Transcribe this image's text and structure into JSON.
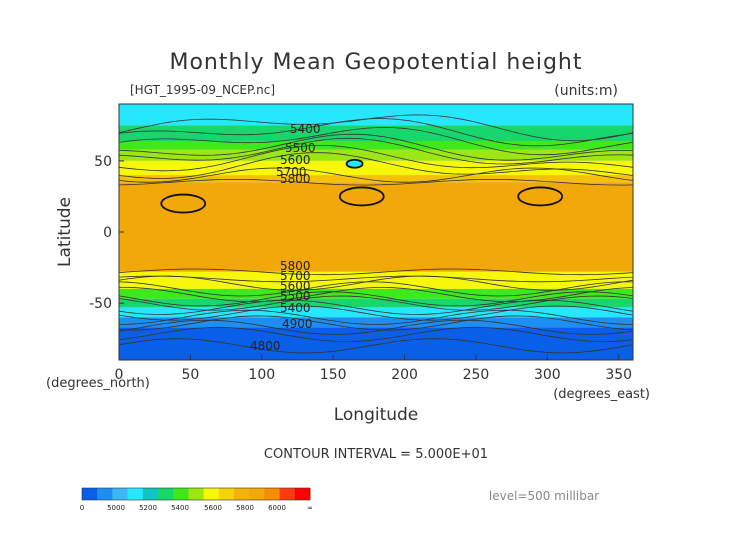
{
  "chart_data": {
    "type": "heatmap",
    "title": "Monthly Mean Geopotential height",
    "file_label": "[HGT_1995-09_NCEP.nc]",
    "units_label": "(units:m)",
    "xlabel": "Longitude",
    "ylabel": "Latitude",
    "x_unit_label": "(degrees_east)",
    "y_unit_label": "(degrees_north)",
    "xlim": [
      0,
      360
    ],
    "ylim": [
      -90,
      90
    ],
    "x_ticks": [
      "0",
      "50",
      "100",
      "150",
      "200",
      "250",
      "300",
      "350"
    ],
    "y_ticks": [
      "50",
      "0",
      "-50"
    ],
    "contour_labels": [
      "5400",
      "5500",
      "5600",
      "5700",
      "5800",
      "5800",
      "5700",
      "5600",
      "5500",
      "5400",
      "4900",
      "4800"
    ],
    "contour_interval_label": "CONTOUR INTERVAL = 5.000E+01",
    "level_label": "level=500 millibar",
    "colorbar": {
      "tick_labels": [
        "0",
        "5000",
        "5200",
        "5400",
        "5600",
        "5800",
        "6000",
        "∞"
      ],
      "colors": [
        "#0a5fe8",
        "#1d8ff2",
        "#3fb6f6",
        "#25e8ff",
        "#12c4c4",
        "#17d66c",
        "#3ee81c",
        "#9be613",
        "#f7f70a",
        "#f5d30a",
        "#f3b30a",
        "#f3a80a",
        "#f58e08",
        "#ff3a0e",
        "#ff0000"
      ]
    },
    "bands": [
      {
        "lat_from": 90,
        "lat_to": 75,
        "value": 5350,
        "color": "#25e8ff"
      },
      {
        "lat_from": 75,
        "lat_to": 64,
        "value": 5450,
        "color": "#17d66c"
      },
      {
        "lat_from": 64,
        "lat_to": 58,
        "value": 5550,
        "color": "#3ee81c"
      },
      {
        "lat_from": 58,
        "lat_to": 50,
        "value": 5650,
        "color": "#9be613"
      },
      {
        "lat_from": 50,
        "lat_to": 40,
        "value": 5750,
        "color": "#f7f70a"
      },
      {
        "lat_from": 40,
        "lat_to": 35,
        "value": 5820,
        "color": "#f3c00a"
      },
      {
        "lat_from": 35,
        "lat_to": -28,
        "value": 5870,
        "color": "#f3a80a"
      },
      {
        "lat_from": -28,
        "lat_to": -33,
        "value": 5800,
        "color": "#f7f70a"
      },
      {
        "lat_from": -33,
        "lat_to": -40,
        "value": 5700,
        "color": "#f7f70a"
      },
      {
        "lat_from": -40,
        "lat_to": -47,
        "value": 5600,
        "color": "#3ee81c"
      },
      {
        "lat_from": -47,
        "lat_to": -53,
        "value": 5450,
        "color": "#17d66c"
      },
      {
        "lat_from": -53,
        "lat_to": -60,
        "value": 5300,
        "color": "#25e8ff"
      },
      {
        "lat_from": -60,
        "lat_to": -67,
        "value": 5100,
        "color": "#1d8ff2"
      },
      {
        "lat_from": -67,
        "lat_to": -90,
        "value": 4850,
        "color": "#0a5fe8"
      }
    ]
  }
}
